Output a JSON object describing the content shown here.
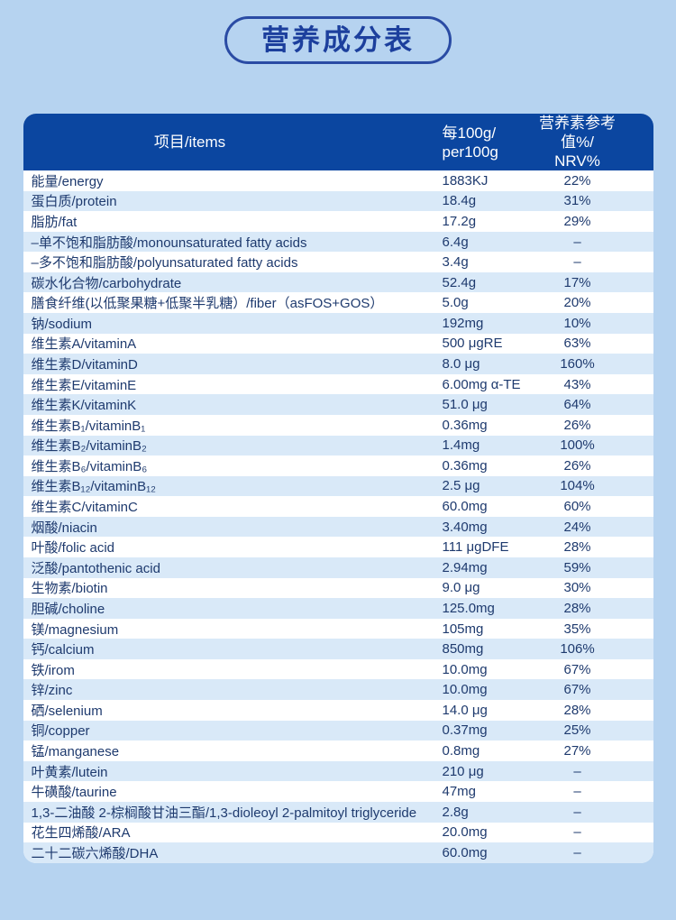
{
  "title": "营养成分表",
  "colors": {
    "page_background": "#b6d3f0",
    "badge_border": "#2a4ba4",
    "title_text": "#1c3f9d",
    "header_background": "#0b46a0",
    "header_text": "#ffffff",
    "row_stripe": "#d9e9f8",
    "row_white": "#ffffff",
    "body_text": "#1e3a6e"
  },
  "table": {
    "header": {
      "col1": "项目/items",
      "col2_line1": "每100g/",
      "col2_line2": "per100g",
      "col3_line1": "营养素参考值%/",
      "col3_line2": "NRV%"
    },
    "rows": [
      {
        "item": "能量/energy",
        "per100g": "1883KJ",
        "nrv": "22%"
      },
      {
        "item": "蛋白质/protein",
        "per100g": "18.4g",
        "nrv": "31%"
      },
      {
        "item": "脂肪/fat",
        "per100g": "17.2g",
        "nrv": "29%"
      },
      {
        "item": "–单不饱和脂肪酸/monounsaturated fatty acids",
        "per100g": "6.4g",
        "nrv": "–"
      },
      {
        "item": "–多不饱和脂肪酸/polyunsaturated fatty acids",
        "per100g": "3.4g",
        "nrv": "–"
      },
      {
        "item": "碳水化合物/carbohydrate",
        "per100g": "52.4g",
        "nrv": "17%"
      },
      {
        "item": "膳食纤维(以低聚果糖+低聚半乳糖）/fiber（asFOS+GOS）",
        "per100g": "5.0g",
        "nrv": "20%"
      },
      {
        "item": "钠/sodium",
        "per100g": "192mg",
        "nrv": "10%"
      },
      {
        "item": "维生素A/vitaminA",
        "per100g": "500 μgRE",
        "nrv": "63%"
      },
      {
        "item": "维生素D/vitaminD",
        "per100g": "8.0 μg",
        "nrv": "160%"
      },
      {
        "item": "维生素E/vitaminE",
        "per100g": "6.00mg α-TE",
        "nrv": "43%"
      },
      {
        "item": "维生素K/vitaminK",
        "per100g": "51.0 μg",
        "nrv": "64%"
      },
      {
        "item": "维生素B₁/vitaminB₁",
        "per100g": "0.36mg",
        "nrv": "26%"
      },
      {
        "item": "维生素B₂/vitaminB₂",
        "per100g": "1.4mg",
        "nrv": "100%"
      },
      {
        "item": "维生素B₆/vitaminB₆",
        "per100g": "0.36mg",
        "nrv": "26%"
      },
      {
        "item": "维生素B₁₂/vitaminB₁₂",
        "per100g": "2.5 μg",
        "nrv": "104%"
      },
      {
        "item": "维生素C/vitaminC",
        "per100g": "60.0mg",
        "nrv": "60%"
      },
      {
        "item": "烟酸/niacin",
        "per100g": "3.40mg",
        "nrv": "24%"
      },
      {
        "item": "叶酸/folic acid",
        "per100g": "111 μgDFE",
        "nrv": "28%"
      },
      {
        "item": "泛酸/pantothenic acid",
        "per100g": "2.94mg",
        "nrv": "59%"
      },
      {
        "item": "生物素/biotin",
        "per100g": "9.0 μg",
        "nrv": "30%"
      },
      {
        "item": "胆碱/choline",
        "per100g": "125.0mg",
        "nrv": "28%"
      },
      {
        "item": "镁/magnesium",
        "per100g": "105mg",
        "nrv": "35%"
      },
      {
        "item": "钙/calcium",
        "per100g": "850mg",
        "nrv": "106%"
      },
      {
        "item": "铁/irom",
        "per100g": "10.0mg",
        "nrv": "67%"
      },
      {
        "item": "锌/zinc",
        "per100g": "10.0mg",
        "nrv": "67%"
      },
      {
        "item": "硒/selenium",
        "per100g": "14.0 μg",
        "nrv": "28%"
      },
      {
        "item": "铜/copper",
        "per100g": "0.37mg",
        "nrv": "25%"
      },
      {
        "item": "锰/manganese",
        "per100g": "0.8mg",
        "nrv": "27%"
      },
      {
        "item": "叶黄素/lutein",
        "per100g": "210 μg",
        "nrv": "–"
      },
      {
        "item": "牛磺酸/taurine",
        "per100g": "47mg",
        "nrv": "–"
      },
      {
        "item": "1,3-二油酸 2-棕榈酸甘油三酯/1,3-dioleoyl 2-palmitoyl triglyceride",
        "per100g": "2.8g",
        "nrv": "–"
      },
      {
        "item": "花生四烯酸/ARA",
        "per100g": "20.0mg",
        "nrv": "–"
      },
      {
        "item": "二十二碳六烯酸/DHA",
        "per100g": "60.0mg",
        "nrv": "–"
      }
    ]
  }
}
